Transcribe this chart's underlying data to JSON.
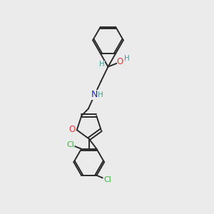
{
  "background_color": "#ebebeb",
  "bond_color": "#2a2a2a",
  "atom_colors": {
    "O": "#e63939",
    "N": "#2222cc",
    "Cl": "#3cb33c",
    "C": "#2a2a2a",
    "H": "#4a9a9a"
  }
}
